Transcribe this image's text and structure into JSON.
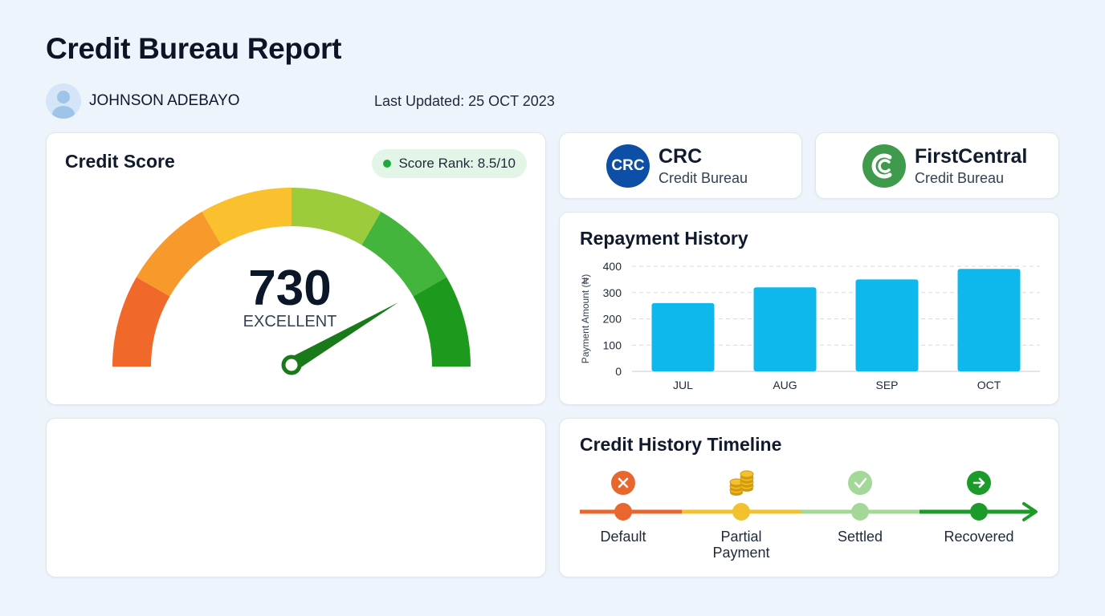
{
  "page": {
    "title": "Credit Bureau Report",
    "user_name": "JOHNSON ADEBAYO",
    "last_updated": "Last Updated: 25 OCT 2023"
  },
  "credit_score": {
    "title": "Credit Score",
    "rank_badge": "Score Rank: 8.5/10",
    "score": "730",
    "rating": "EXCELLENT",
    "gauge_colors": [
      "#f0692a",
      "#f79a2b",
      "#fbc02d",
      "#9ccc3c",
      "#43b53c",
      "#1d9a1d"
    ],
    "needle_color": "#1a7a1a"
  },
  "bureaus": [
    {
      "logo_text": "CRC",
      "name": "CRC",
      "subtitle": "Credit Bureau",
      "color": "#0d4ea6"
    },
    {
      "name": "FirstCentral",
      "subtitle": "Credit Bureau",
      "color": "#3f9a4b"
    }
  ],
  "repayment": {
    "title": "Repayment History",
    "chart_data": {
      "type": "bar",
      "categories": [
        "JUL",
        "AUG",
        "SEP",
        "OCT"
      ],
      "values": [
        260,
        320,
        350,
        390
      ],
      "ylabel": "Payment Amount (₦)",
      "yticks": [
        0,
        100,
        200,
        300,
        400
      ],
      "ylim": [
        0,
        400
      ],
      "grid": true,
      "bar_color": "#0fb8ec"
    }
  },
  "timeline": {
    "title": "Credit History Timeline",
    "stages": [
      {
        "label": "Default",
        "color": "#e8672e",
        "icon": "x-circle-icon"
      },
      {
        "label": "Partial Payment",
        "label_lines": [
          "Partial",
          "Payment"
        ],
        "color": "#f2c12e",
        "icon": "coins-icon"
      },
      {
        "label": "Settled",
        "color": "#a4d898",
        "icon": "check-circle-icon"
      },
      {
        "label": "Recovered",
        "color": "#1c9a2a",
        "icon": "arrow-right-circle-icon"
      }
    ]
  }
}
